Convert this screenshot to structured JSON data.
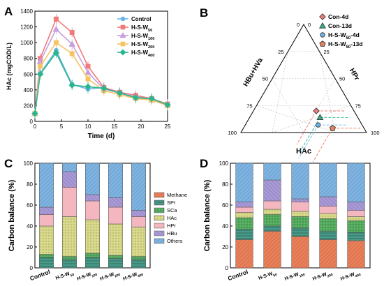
{
  "colors": {
    "control": "#6cb4e8",
    "w50": "#f07b7b",
    "w100": "#c79ee0",
    "w200": "#f5c463",
    "w400": "#2bb58f",
    "methane": "#e8805a",
    "spr": "#4a9a8a",
    "sca": "#60b86a",
    "hac": "#d9d98c",
    "hpr": "#f4b6bf",
    "hbu": "#a99ad6",
    "others": "#7fb3e0"
  },
  "panels": {
    "a": "A",
    "b": "B",
    "c": "C",
    "d": "D"
  },
  "chart_data": [
    {
      "id": "A",
      "type": "line",
      "xlabel": "Time (d)",
      "ylabel": "HAc (mgCOD/L)",
      "xlim": [
        0,
        25
      ],
      "ylim": [
        0,
        1400
      ],
      "xticks": [
        "0",
        "5",
        "10",
        "15",
        "20",
        "25"
      ],
      "yticks": [
        "0",
        "200",
        "400",
        "600",
        "800",
        "1000",
        "1200",
        "1400"
      ],
      "x": [
        0,
        1,
        4,
        7,
        10,
        13,
        16,
        19,
        22,
        25
      ],
      "legend_position": "top-right",
      "series": [
        {
          "name": "Control",
          "key": "control",
          "marker": "circle",
          "values": [
            100,
            610,
            900,
            470,
            410,
            430,
            360,
            310,
            290,
            210
          ]
        },
        {
          "name": "H-S-W",
          "sub": "50",
          "key": "w50",
          "marker": "square",
          "values": [
            100,
            800,
            1300,
            1130,
            700,
            430,
            370,
            330,
            290,
            220
          ]
        },
        {
          "name": "H-S-W",
          "sub": "100",
          "key": "w100",
          "marker": "triangle",
          "values": [
            100,
            760,
            1170,
            980,
            620,
            410,
            360,
            300,
            270,
            210
          ]
        },
        {
          "name": "H-S-W",
          "sub": "200",
          "key": "w200",
          "marker": "square",
          "values": [
            100,
            700,
            1000,
            860,
            540,
            390,
            340,
            290,
            270,
            200
          ]
        },
        {
          "name": "H-S-W",
          "sub": "400",
          "key": "w400",
          "marker": "diamond",
          "values": [
            100,
            600,
            870,
            460,
            440,
            420,
            360,
            300,
            290,
            210
          ]
        }
      ]
    },
    {
      "id": "B",
      "type": "scatter",
      "subtype": "ternary",
      "axes": {
        "left": "HBu+HVa",
        "right": "HPr",
        "bottom": "HAc"
      },
      "ticks": [
        "0",
        "25",
        "50",
        "75",
        "100"
      ],
      "legend_position": "top-right",
      "points": [
        {
          "name": "Con-4d",
          "key": "w50",
          "marker": "diamond",
          "hac": 50,
          "hpr": 30,
          "hbu": 20
        },
        {
          "name": "Con-13d",
          "key": "w400",
          "marker": "triangle",
          "hac": 56,
          "hpr": 30,
          "hbu": 14
        },
        {
          "name": "H-S-W",
          "sub": "50",
          "suffix": "-4d",
          "key": "control",
          "marker": "circle",
          "hac": 58,
          "hpr": 35,
          "hbu": 7
        },
        {
          "name": "H-S-W",
          "sub": "50",
          "suffix": "-13d",
          "key": "methane",
          "marker": "pentagon",
          "hac": 71,
          "hpr": 25,
          "hbu": 4
        }
      ]
    },
    {
      "id": "C",
      "type": "bar",
      "stacked": true,
      "ylabel": "Carbon balance (%)",
      "ylim": [
        0,
        100
      ],
      "yticks": [
        "0",
        "20",
        "40",
        "60",
        "80",
        "100"
      ],
      "categories": [
        {
          "base": "Control",
          "sub": ""
        },
        {
          "base": "H-S-W",
          "sub": "50"
        },
        {
          "base": "H-S-W",
          "sub": "100"
        },
        {
          "base": "H-S-W",
          "sub": "200"
        },
        {
          "base": "H-S-W",
          "sub": "400"
        }
      ],
      "legend_position": "right",
      "series": [
        {
          "name": "Methane",
          "key": "methane",
          "values": [
            0,
            0,
            0,
            0,
            0
          ]
        },
        {
          "name": "SPr",
          "key": "spr",
          "values": [
            10,
            8,
            10,
            9,
            8
          ]
        },
        {
          "name": "SCa",
          "key": "sca",
          "values": [
            3,
            3,
            4,
            3,
            3
          ]
        },
        {
          "name": "HAc",
          "key": "hac",
          "values": [
            27,
            38,
            32,
            30,
            28
          ]
        },
        {
          "name": "HPr",
          "key": "hpr",
          "values": [
            11,
            28,
            18,
            16,
            10
          ]
        },
        {
          "name": "HBu",
          "key": "hbu",
          "values": [
            7,
            15,
            6,
            9,
            6
          ]
        },
        {
          "name": "Others",
          "key": "others",
          "values": [
            42,
            8,
            30,
            33,
            45
          ]
        }
      ]
    },
    {
      "id": "D",
      "type": "bar",
      "stacked": true,
      "ylabel": "Carbon balance (%)",
      "ylim": [
        0,
        100
      ],
      "yticks": [
        "0",
        "20",
        "40",
        "60",
        "80",
        "100"
      ],
      "categories": [
        {
          "base": "Control",
          "sub": ""
        },
        {
          "base": "H-S-W",
          "sub": "50"
        },
        {
          "base": "H-S-W",
          "sub": "100"
        },
        {
          "base": "H-S-W",
          "sub": "200"
        },
        {
          "base": "H-S-W",
          "sub": "400"
        }
      ],
      "series": [
        {
          "name": "Methane",
          "key": "methane",
          "values": [
            27,
            35,
            30,
            27,
            26
          ]
        },
        {
          "name": "SPr",
          "key": "spr",
          "values": [
            10,
            5,
            8,
            8,
            8
          ]
        },
        {
          "name": "SCa",
          "key": "sca",
          "values": [
            11,
            11,
            11,
            12,
            11
          ]
        },
        {
          "name": "HAc",
          "key": "hac",
          "values": [
            5,
            5,
            5,
            5,
            4
          ]
        },
        {
          "name": "HPr",
          "key": "hpr",
          "values": [
            5,
            8,
            9,
            7,
            6
          ]
        },
        {
          "name": "HBu",
          "key": "hbu",
          "values": [
            5,
            20,
            3,
            9,
            8
          ]
        },
        {
          "name": "Others",
          "key": "others",
          "values": [
            37,
            16,
            34,
            32,
            37
          ]
        }
      ]
    }
  ]
}
